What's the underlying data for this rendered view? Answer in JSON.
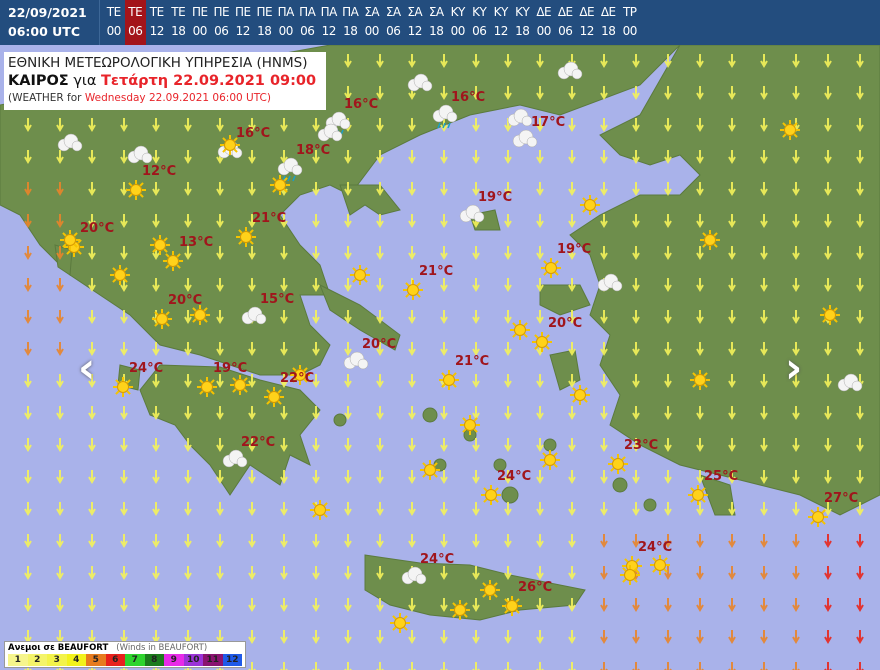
{
  "header": {
    "date": "22/09/2021",
    "time": "06:00 UTC",
    "slots": [
      {
        "day": "ΤΕ",
        "hour": "00"
      },
      {
        "day": "ΤΕ",
        "hour": "06",
        "selected": true
      },
      {
        "day": "ΤΕ",
        "hour": "12"
      },
      {
        "day": "ΤΕ",
        "hour": "18"
      },
      {
        "day": "ΠΕ",
        "hour": "00"
      },
      {
        "day": "ΠΕ",
        "hour": "06"
      },
      {
        "day": "ΠΕ",
        "hour": "12"
      },
      {
        "day": "ΠΕ",
        "hour": "18"
      },
      {
        "day": "ΠΑ",
        "hour": "00"
      },
      {
        "day": "ΠΑ",
        "hour": "06"
      },
      {
        "day": "ΠΑ",
        "hour": "12"
      },
      {
        "day": "ΠΑ",
        "hour": "18"
      },
      {
        "day": "ΣΑ",
        "hour": "00"
      },
      {
        "day": "ΣΑ",
        "hour": "06"
      },
      {
        "day": "ΣΑ",
        "hour": "12"
      },
      {
        "day": "ΣΑ",
        "hour": "18"
      },
      {
        "day": "ΚΥ",
        "hour": "00"
      },
      {
        "day": "ΚΥ",
        "hour": "06"
      },
      {
        "day": "ΚΥ",
        "hour": "12"
      },
      {
        "day": "ΚΥ",
        "hour": "18"
      },
      {
        "day": "ΔΕ",
        "hour": "00"
      },
      {
        "day": "ΔΕ",
        "hour": "06"
      },
      {
        "day": "ΔΕ",
        "hour": "12"
      },
      {
        "day": "ΔΕ",
        "hour": "18"
      },
      {
        "day": "ΤΡ",
        "hour": "00"
      }
    ]
  },
  "title": {
    "agency": "ΕΘΝΙΚΗ ΜΕΤΕΩΡΟΛΟΓΙΚΗ ΥΠΗΡΕΣΙΑ (HNMS)",
    "weather_label": "ΚΑΙΡΟΣ",
    "for_label": "για",
    "forecast_time": "Τετάρτη 22.09.2021 09:00",
    "english_prefix": "(WEATHER for",
    "english_time": "Wednesday 22.09.2021 06:00 UTC)"
  },
  "temperatures": [
    {
      "label": "16°C",
      "icon": "cloud"
    },
    {
      "label": "16°C",
      "icon": "rain"
    },
    {
      "label": "16°C",
      "icon": "rain"
    },
    {
      "label": "17°C",
      "icon": "cloud"
    },
    {
      "label": "18°C",
      "icon": "rain"
    },
    {
      "label": "12°C",
      "icon": "sun"
    },
    {
      "label": "19°C",
      "icon": "cloud"
    },
    {
      "label": "21°C",
      "icon": "sun"
    },
    {
      "label": "20°C",
      "icon": "sun"
    },
    {
      "label": "13°C",
      "icon": "sun"
    },
    {
      "label": "19°C",
      "icon": "sun"
    },
    {
      "label": "21°C",
      "icon": "sun"
    },
    {
      "label": "20°C",
      "icon": "sun"
    },
    {
      "label": "15°C",
      "icon": "cloud"
    },
    {
      "label": "20°C",
      "icon": "sun"
    },
    {
      "label": "20°C",
      "icon": "cloud"
    },
    {
      "label": "21°C",
      "icon": "sun"
    },
    {
      "label": "24°C",
      "icon": "sun"
    },
    {
      "label": "19°C",
      "icon": "sun"
    },
    {
      "label": "22°C",
      "icon": "sun"
    },
    {
      "label": "23°C",
      "icon": "sun"
    },
    {
      "label": "22°C",
      "icon": "cloud"
    },
    {
      "label": "24°C",
      "icon": "sun"
    },
    {
      "label": "25°C",
      "icon": "sun"
    },
    {
      "label": "27°C",
      "icon": "sun"
    },
    {
      "label": "24°C",
      "icon": "sun"
    },
    {
      "label": "24°C",
      "icon": "cloud"
    },
    {
      "label": "26°C",
      "icon": "sun"
    }
  ],
  "nav": {
    "prev_icon": "chevron-left-icon",
    "next_icon": "chevron-right-icon"
  },
  "legend": {
    "title": "Ανεμοι σε BEAUFORT",
    "subtitle": "(Winds in BEAUFORT)",
    "scale": [
      {
        "value": "1",
        "color": "#f6f58c"
      },
      {
        "value": "2",
        "color": "#f4f46a"
      },
      {
        "value": "3",
        "color": "#f3f34a"
      },
      {
        "value": "4",
        "color": "#f2f21c"
      },
      {
        "value": "5",
        "color": "#e77b1f"
      },
      {
        "value": "6",
        "color": "#e8211d"
      },
      {
        "value": "7",
        "color": "#2ed42e"
      },
      {
        "value": "8",
        "color": "#1c7c1c"
      },
      {
        "value": "9",
        "color": "#e82ae8"
      },
      {
        "value": "10",
        "color": "#9b34d8"
      },
      {
        "value": "11",
        "color": "#8a1470"
      },
      {
        "value": "12",
        "color": "#1f5ae8"
      }
    ]
  },
  "colors": {
    "header_bg": "#234d7e",
    "selected_slot": "#a3141a",
    "sea": "#a9b2ea",
    "land": "#6e8e4c",
    "temp_text": "#a0151c"
  }
}
